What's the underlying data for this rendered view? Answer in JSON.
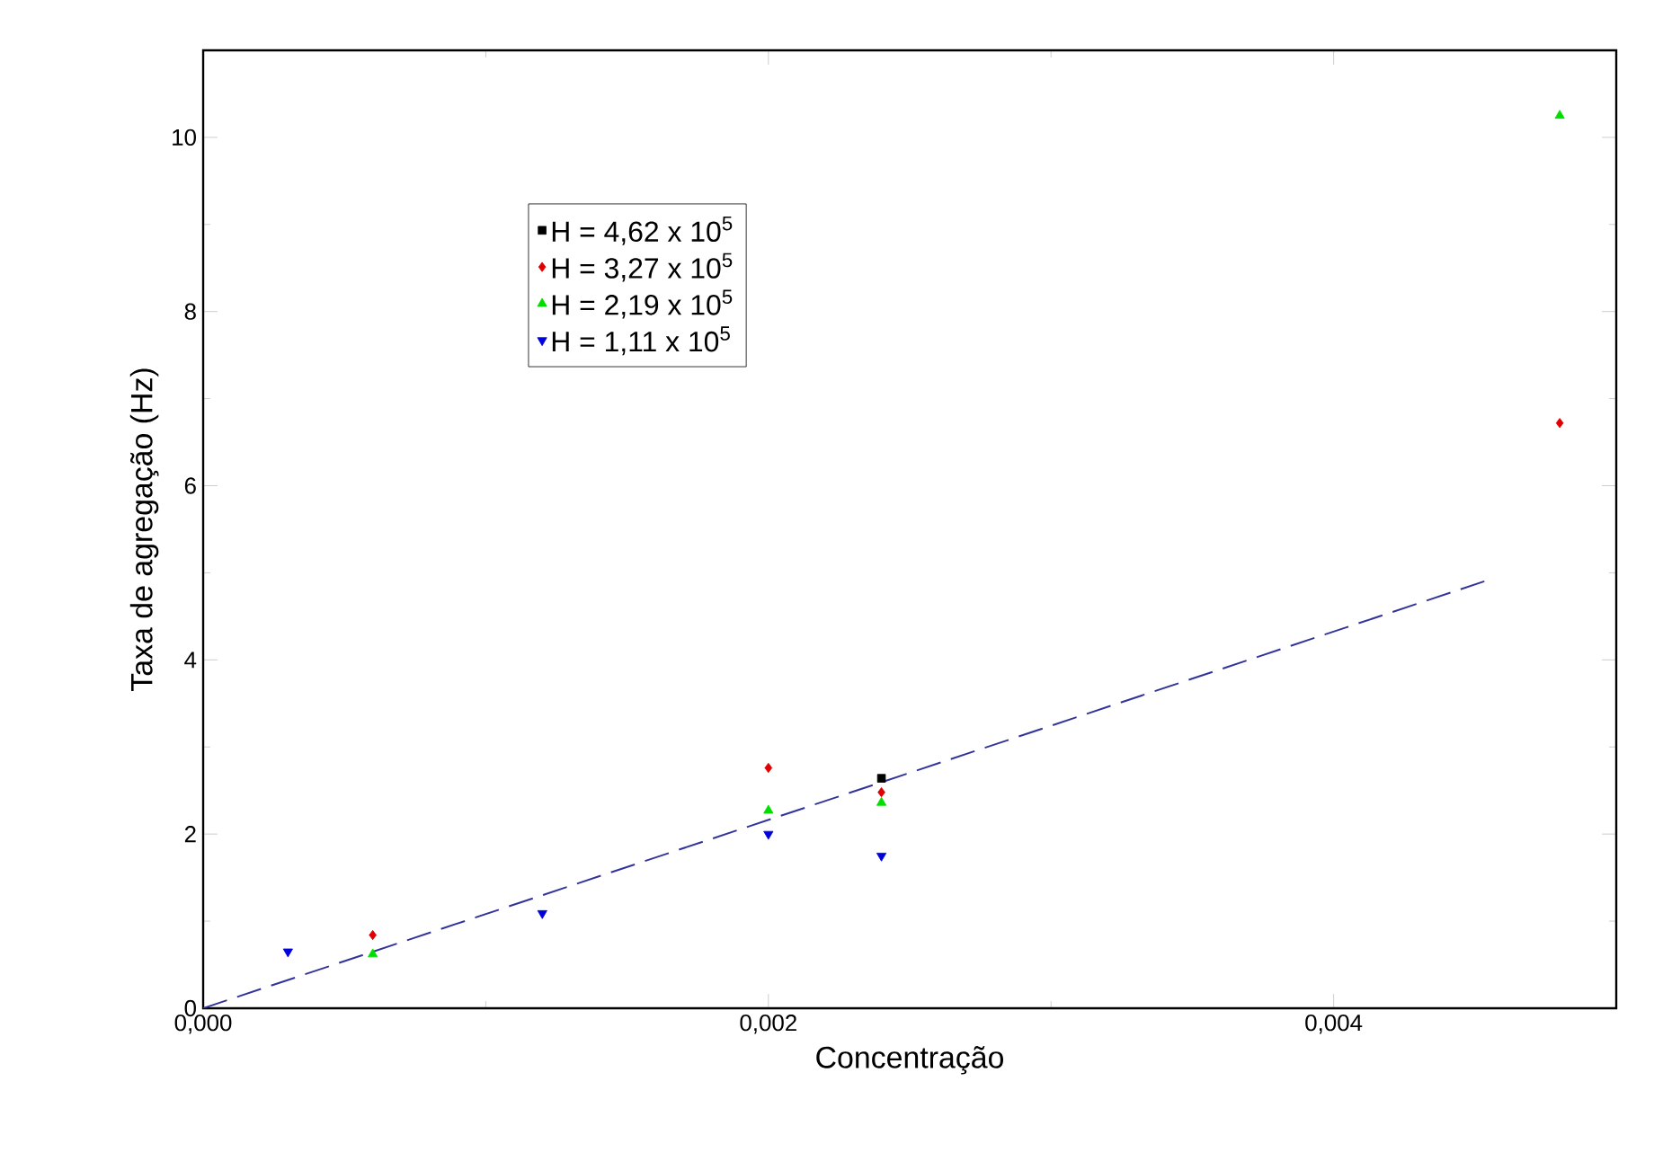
{
  "chart_data": {
    "type": "scatter",
    "xlabel": "Concentração",
    "ylabel": "Taxa de agregação (Hz)",
    "xlim": [
      0,
      0.005
    ],
    "ylim": [
      0,
      11
    ],
    "xticks": [
      {
        "value": 0,
        "label": "0,000"
      },
      {
        "value": 0.002,
        "label": "0,002"
      },
      {
        "value": 0.004,
        "label": "0,004"
      }
    ],
    "yticks": [
      0,
      2,
      4,
      6,
      8,
      10
    ],
    "legend": "top left",
    "grid": false,
    "series": [
      {
        "name": "H = 4,62 x 10$^{5}$",
        "color": "#000000",
        "marker": "square",
        "x": [
          0.0024
        ],
        "values": [
          2.64
        ]
      },
      {
        "name": "H = 3,27 x 10$^{5}$",
        "color": "#e00000",
        "marker": "diamond",
        "x": [
          0.0006,
          0.002,
          0.0024,
          0.0048
        ],
        "values": [
          0.84,
          2.76,
          2.48,
          6.72
        ]
      },
      {
        "name": "H = 2,19 x 10$^{5}$",
        "color": "#00dd00",
        "marker": "triangle",
        "x": [
          0.0006,
          0.002,
          0.0024,
          0.0048
        ],
        "values": [
          0.62,
          2.27,
          2.36,
          10.25
        ]
      },
      {
        "name": "H = 1,11 x 10$^{5}$",
        "color": "#0000dd",
        "marker": "triangle-down",
        "x": [
          0.0003,
          0.0012,
          0.002,
          0.0024
        ],
        "values": [
          0.65,
          1.09,
          2.0,
          1.75
        ]
      },
      {
        "type": "line",
        "color": "#333399",
        "line_style": "dashed",
        "marker": "none",
        "x": [
          0,
          0.00455
        ],
        "values": [
          0,
          4.92
        ]
      }
    ]
  }
}
